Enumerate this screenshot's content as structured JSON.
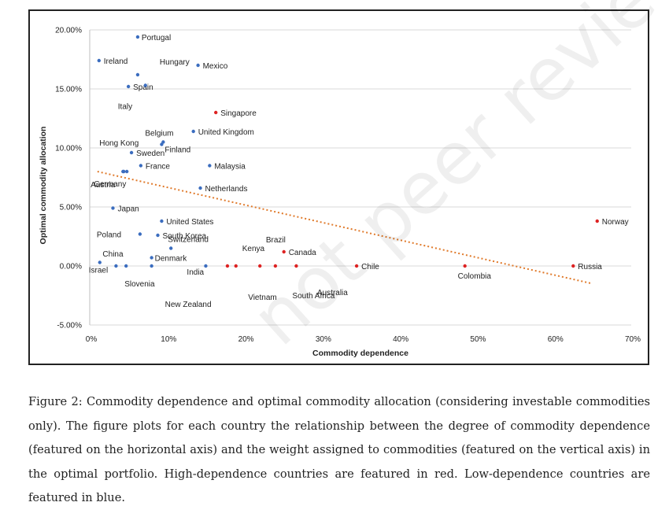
{
  "chart_data": {
    "type": "scatter",
    "xlabel": "Commodity dependence",
    "ylabel": "Optimal commodity allocation",
    "xlim": [
      0,
      70
    ],
    "ylim": [
      -5,
      20
    ],
    "x_ticks": [
      "0%",
      "10%",
      "20%",
      "30%",
      "40%",
      "50%",
      "60%",
      "70%"
    ],
    "y_ticks": [
      "20.00%",
      "15.00%",
      "10.00%",
      "5.00%",
      "0.00%",
      "-5.00%"
    ],
    "grid": true,
    "trendline": {
      "style": "dotted",
      "color": "#e07a2b",
      "from": [
        1,
        8
      ],
      "to": [
        65,
        -1.5
      ]
    },
    "colors": {
      "high": "#dd2222",
      "low": "#3b6dbf",
      "trend": "#e07a2b"
    },
    "points": [
      {
        "label": "Portugal",
        "x": 6.2,
        "y": 19.4,
        "group": "low"
      },
      {
        "label": "Ireland",
        "x": 1.2,
        "y": 17.4,
        "group": "low"
      },
      {
        "label": "Hungary",
        "x": 6.2,
        "y": 16.2,
        "group": "low"
      },
      {
        "label": "Mexico",
        "x": 14.0,
        "y": 17.0,
        "group": "low"
      },
      {
        "label": "Spain",
        "x": 5.0,
        "y": 15.2,
        "group": "low"
      },
      {
        "label": "Singapore",
        "x": 16.3,
        "y": 13.0,
        "group": "high"
      },
      {
        "label": "Italy",
        "x": 7.2,
        "y": 15.3,
        "group": "low"
      },
      {
        "label": "Hong Kong",
        "x": 4.3,
        "y": 8.0,
        "group": "low"
      },
      {
        "label": "Belgium",
        "x": 9.5,
        "y": 10.5,
        "group": "low"
      },
      {
        "label": "United Kingdom",
        "x": 13.4,
        "y": 11.4,
        "group": "low"
      },
      {
        "label": "Finland",
        "x": 9.3,
        "y": 10.3,
        "group": "low"
      },
      {
        "label": "Austria",
        "x": 4.8,
        "y": 8.0,
        "group": "low"
      },
      {
        "label": "Sweden",
        "x": 5.4,
        "y": 9.6,
        "group": "low"
      },
      {
        "label": "France",
        "x": 6.6,
        "y": 8.5,
        "group": "low"
      },
      {
        "label": "Malaysia",
        "x": 15.5,
        "y": 8.5,
        "group": "low"
      },
      {
        "label": "Germany",
        "x": 4.4,
        "y": 8.0,
        "group": "low"
      },
      {
        "label": "Netherlands",
        "x": 14.3,
        "y": 6.6,
        "group": "low"
      },
      {
        "label": "Japan",
        "x": 3.0,
        "y": 4.9,
        "group": "low"
      },
      {
        "label": "United States",
        "x": 9.3,
        "y": 3.8,
        "group": "low"
      },
      {
        "label": "Poland",
        "x": 6.5,
        "y": 2.7,
        "group": "low"
      },
      {
        "label": "South Korea",
        "x": 8.8,
        "y": 2.6,
        "group": "low"
      },
      {
        "label": "Switzerland",
        "x": 10.5,
        "y": 1.5,
        "group": "low"
      },
      {
        "label": "Brazil",
        "x": 24.0,
        "y": 0.0,
        "group": "high"
      },
      {
        "label": "Kenya",
        "x": 18.9,
        "y": 0.0,
        "group": "high"
      },
      {
        "label": "Canada",
        "x": 25.1,
        "y": 1.2,
        "group": "high"
      },
      {
        "label": "Norway",
        "x": 65.6,
        "y": 3.8,
        "group": "high"
      },
      {
        "label": "China",
        "x": 3.4,
        "y": 0.0,
        "group": "low"
      },
      {
        "label": "Denmark",
        "x": 8.0,
        "y": 0.7,
        "group": "low"
      },
      {
        "label": "India",
        "x": 15.0,
        "y": 0.0,
        "group": "low"
      },
      {
        "label": "Chile",
        "x": 34.5,
        "y": 0.0,
        "group": "high"
      },
      {
        "label": "Russia",
        "x": 62.5,
        "y": 0.0,
        "group": "high"
      },
      {
        "label": "Israel",
        "x": 1.3,
        "y": 0.3,
        "group": "low"
      },
      {
        "label": "Colombia",
        "x": 48.5,
        "y": 0.0,
        "group": "high"
      },
      {
        "label": "Slovenia",
        "x": 4.7,
        "y": 0.0,
        "group": "low"
      },
      {
        "label": "Vietnam",
        "x": 22.0,
        "y": 0.0,
        "group": "high"
      },
      {
        "label": "South Africa",
        "x": 26.7,
        "y": 0.0,
        "group": "high"
      },
      {
        "label": "Australia",
        "x": 17.8,
        "y": 0.0,
        "group": "high"
      },
      {
        "label": "New Zealand",
        "x": 8.0,
        "y": 0.0,
        "group": "low"
      }
    ]
  },
  "caption": "Figure 2: Commodity dependence and optimal commodity allocation (considering investable commodities only). The figure plots for each country the relationship between the degree of commodity dependence (featured on the horizontal axis) and the weight assigned to commodities (featured on the vertical axis) in the optimal portfolio. High-dependence countries are featured in red. Low-dependence countries are featured in blue.",
  "watermark": "not peer reviewed"
}
